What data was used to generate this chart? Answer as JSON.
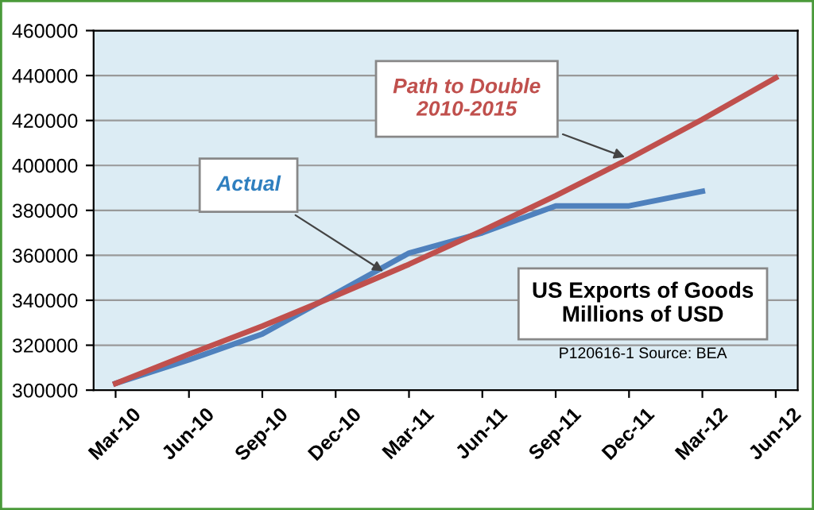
{
  "chart_data": {
    "type": "line",
    "title": "US Exports of Goods\nMillions of USD",
    "annotations": [
      "P120616-1 Source: BEA"
    ],
    "categories": [
      "Mar-10",
      "Jun-10",
      "Sep-10",
      "Dec-10",
      "Mar-11",
      "Jun-11",
      "Sep-11",
      "Dec-11",
      "Mar-12",
      "Jun-12"
    ],
    "series": [
      {
        "name": "Actual",
        "color": "#4f81bd",
        "values": [
          303000,
          313500,
          325000,
          343000,
          361000,
          370000,
          382000,
          382000,
          388500,
          null
        ]
      },
      {
        "name": "Path to Double\n2010-2015",
        "color": "#c0504d",
        "values": [
          303000,
          316000,
          328500,
          342000,
          356000,
          371000,
          386500,
          403000,
          420500,
          439000
        ]
      }
    ],
    "ylim": [
      300000,
      460000
    ],
    "yticks": [
      300000,
      320000,
      340000,
      360000,
      380000,
      400000,
      420000,
      440000,
      460000
    ],
    "grid": "y",
    "legend": false,
    "marker": "none",
    "line_style": "solid"
  }
}
